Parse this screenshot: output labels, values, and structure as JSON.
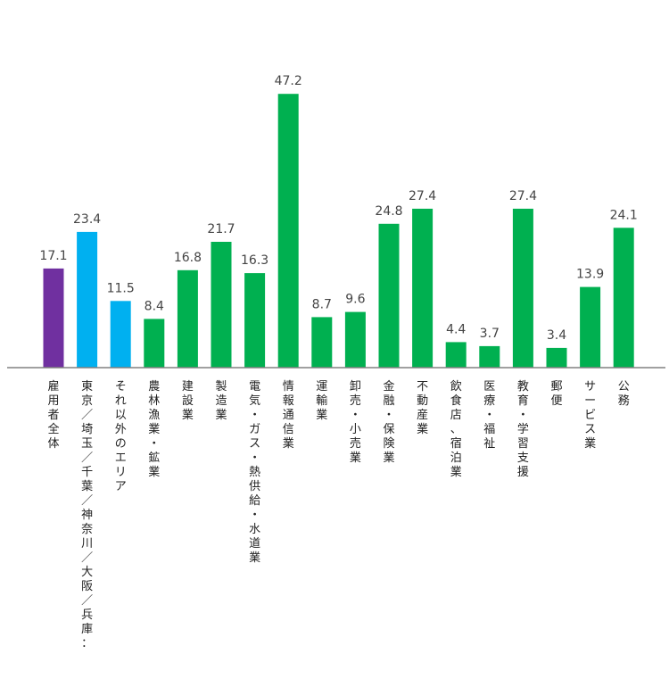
{
  "chart_data": {
    "type": "bar",
    "title": "",
    "xlabel": "",
    "ylabel": "",
    "ylim": [
      0,
      50
    ],
    "grid": false,
    "legend": "none",
    "categories": [
      "雇用者全体",
      "東京／埼玉／千葉／神奈川／大阪／兵庫：",
      "それ以外のエリア",
      "農林漁業・鉱業",
      "建設業",
      "製造業",
      "電気・ガス・熱供給・水道業",
      "情報通信業",
      "運輸業",
      "卸売・小売業",
      "金融・保険業",
      "不動産業",
      "飲食店、宿泊業",
      "医療・福祉",
      "教育・学習支援",
      "郵便",
      "サービス業",
      "公務"
    ],
    "values": [
      17.1,
      23.4,
      11.5,
      8.4,
      16.8,
      21.7,
      16.3,
      47.2,
      8.7,
      9.6,
      24.8,
      27.4,
      4.4,
      3.7,
      27.4,
      3.4,
      13.9,
      24.1
    ],
    "value_labels": [
      "17.1",
      "23.4",
      "11.5",
      "8.4",
      "16.8",
      "21.7",
      "16.3",
      "47.2",
      "8.7",
      "9.6",
      "24.8",
      "27.4",
      "4.4",
      "3.7",
      "27.4",
      "3.4",
      "13.9",
      "24.1"
    ],
    "bar_colors": [
      "#7030A0",
      "#00B0F0",
      "#00B0F0",
      "#00B050",
      "#00B050",
      "#00B050",
      "#00B050",
      "#00B050",
      "#00B050",
      "#00B050",
      "#00B050",
      "#00B050",
      "#00B050",
      "#00B050",
      "#00B050",
      "#00B050",
      "#00B050",
      "#00B050"
    ],
    "axis_color": "#808080"
  }
}
